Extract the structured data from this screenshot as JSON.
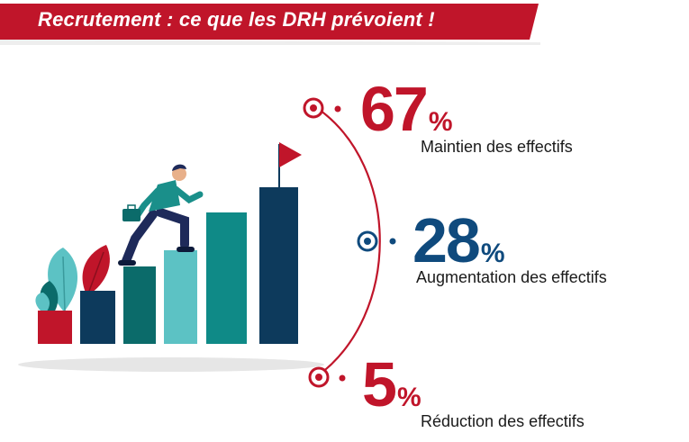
{
  "header": {
    "title": "Recrutement : ce que les DRH prévoient !"
  },
  "colors": {
    "red": "#c0152a",
    "navy": "#0f4a7d",
    "dark_navy": "#0d3a5c",
    "teal": "#0f8a87",
    "dark_teal": "#0b6b6a",
    "light_teal": "#5cc2c4"
  },
  "stats": [
    {
      "value": "67",
      "unit": "%",
      "label": "Maintien des effectifs",
      "color": "#c0152a",
      "icon": "target-icon"
    },
    {
      "value": "28",
      "unit": "%",
      "label": "Augmentation des effectifs",
      "color": "#0f4a7d",
      "icon": "target-icon"
    },
    {
      "value": "5",
      "unit": "%",
      "label": "Réduction des effectifs",
      "color": "#c0152a",
      "icon": "target-icon"
    }
  ]
}
